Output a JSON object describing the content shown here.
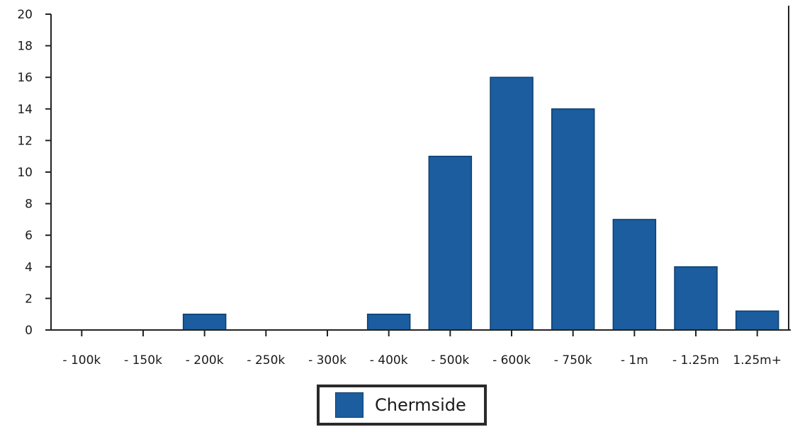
{
  "chart_data": {
    "type": "bar",
    "categories": [
      "- 100k",
      "- 150k",
      "- 200k",
      "- 250k",
      "- 300k",
      "- 400k",
      "- 500k",
      "- 600k",
      "- 750k",
      "- 1m",
      "- 1.25m",
      "1.25m+"
    ],
    "series": [
      {
        "name": "Chermside",
        "values": [
          0,
          0,
          1,
          0,
          0,
          1,
          11,
          16,
          14,
          7,
          4,
          1.2
        ]
      }
    ],
    "ylim": [
      0,
      20
    ],
    "yticks": [
      0,
      2,
      4,
      6,
      8,
      10,
      12,
      14,
      16,
      18,
      20
    ],
    "legend_position": "bottom-center",
    "bar_color": "#1b5d9e",
    "grid": false
  }
}
